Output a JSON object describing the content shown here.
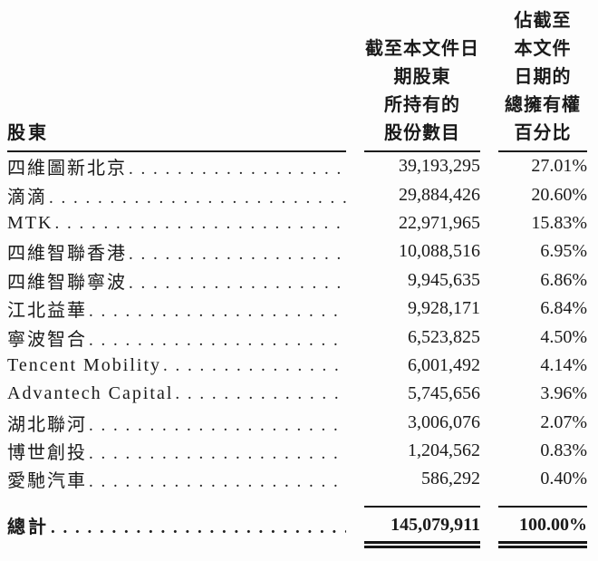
{
  "table": {
    "header": {
      "col1": "股東",
      "col2_lines": [
        "截至本文件日",
        "期股東",
        "所持有的",
        "股份數目"
      ],
      "col3_lines": [
        "佔截至",
        "本文件",
        "日期的",
        "總擁有權",
        "百分比"
      ]
    },
    "rows": [
      {
        "name": "四維圖新北京",
        "shares": "39,193,295",
        "percent": "27.01%"
      },
      {
        "name": "滴滴",
        "shares": "29,884,426",
        "percent": "20.60%"
      },
      {
        "name": "MTK",
        "shares": "22,971,965",
        "percent": "15.83%"
      },
      {
        "name": "四維智聯香港",
        "shares": "10,088,516",
        "percent": "6.95%"
      },
      {
        "name": "四維智聯寧波",
        "shares": "9,945,635",
        "percent": "6.86%"
      },
      {
        "name": "江北益華",
        "shares": "9,928,171",
        "percent": "6.84%"
      },
      {
        "name": "寧波智合",
        "shares": "6,523,825",
        "percent": "4.50%"
      },
      {
        "name": "Tencent Mobility",
        "shares": "6,001,492",
        "percent": "4.14%"
      },
      {
        "name": "Advantech Capital",
        "shares": "5,745,656",
        "percent": "3.96%"
      },
      {
        "name": "湖北聯河",
        "shares": "3,006,076",
        "percent": "2.07%"
      },
      {
        "name": "博世創投",
        "shares": "1,204,562",
        "percent": "0.83%"
      },
      {
        "name": "愛馳汽車",
        "shares": "586,292",
        "percent": "0.40%"
      }
    ],
    "total": {
      "name": "總計",
      "shares": "145,079,911",
      "percent": "100.00%"
    }
  },
  "colors": {
    "text": "#1a1a1a",
    "rule": "#161616",
    "background": "#fdfdfd"
  }
}
